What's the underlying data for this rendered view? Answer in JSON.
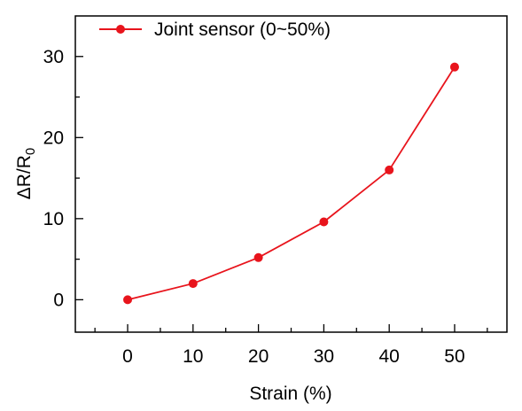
{
  "chart_data": {
    "type": "line",
    "x": [
      0,
      10,
      20,
      30,
      40,
      50
    ],
    "series": [
      {
        "name": "Joint sensor (0~50%)",
        "values": [
          0,
          2.0,
          5.2,
          9.6,
          16.0,
          28.7
        ],
        "color": "#e8141c"
      }
    ],
    "xlabel": "Strain (%)",
    "ylabel": {
      "main": "ΔR/R",
      "sub": "0"
    },
    "xlim": [
      -8,
      58
    ],
    "ylim": [
      -4,
      35
    ],
    "x_ticks": [
      0,
      10,
      20,
      30,
      40,
      50
    ],
    "x_tick_labels": [
      "0",
      "10",
      "20",
      "30",
      "40",
      "50"
    ],
    "x_minor_ticks": [
      -5,
      5,
      15,
      25,
      35,
      45,
      55
    ],
    "y_ticks": [
      0,
      10,
      20,
      30
    ],
    "y_tick_labels": [
      "0",
      "10",
      "20",
      "30"
    ],
    "y_minor_ticks": [
      5,
      15,
      25
    ],
    "grid": false,
    "legend_position": "top-left",
    "marker": "circle"
  }
}
